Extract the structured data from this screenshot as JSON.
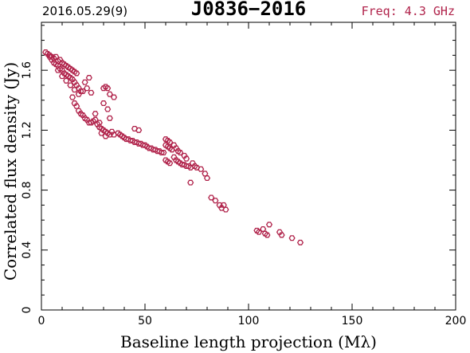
{
  "header": {
    "date": "2016.05.29(9)",
    "source": "J0836−2016",
    "freq": "Freq: 4.3 GHz"
  },
  "colors": {
    "points": "#b0224a",
    "freq_text": "#b0224a",
    "axes": "#000000"
  },
  "chart_data": {
    "type": "scatter",
    "xlabel": "Baseline length projection (Mλ)",
    "ylabel": "Correlated flux density (Jy)",
    "xlim": [
      0,
      200
    ],
    "ylim": [
      0,
      1.92
    ],
    "x_ticks": [
      0,
      50,
      100,
      150,
      200
    ],
    "y_ticks": [
      0,
      0.4,
      0.8,
      1.2,
      1.6
    ],
    "x_tick_labels": [
      "0",
      "50",
      "100",
      "150",
      "200"
    ],
    "y_tick_labels": [
      "0",
      "0.4",
      "0.8",
      "1.2",
      "1.6"
    ],
    "grid": false,
    "points": [
      [
        2,
        1.72
      ],
      [
        3,
        1.71
      ],
      [
        4,
        1.7
      ],
      [
        5,
        1.69
      ],
      [
        6,
        1.68
      ],
      [
        7,
        1.69
      ],
      [
        8,
        1.66
      ],
      [
        9,
        1.67
      ],
      [
        10,
        1.65
      ],
      [
        11,
        1.64
      ],
      [
        12,
        1.63
      ],
      [
        13,
        1.62
      ],
      [
        14,
        1.61
      ],
      [
        15,
        1.6
      ],
      [
        16,
        1.59
      ],
      [
        17,
        1.58
      ],
      [
        4,
        1.69
      ],
      [
        5,
        1.67
      ],
      [
        6,
        1.65
      ],
      [
        7,
        1.64
      ],
      [
        8,
        1.63
      ],
      [
        9,
        1.61
      ],
      [
        10,
        1.6
      ],
      [
        11,
        1.58
      ],
      [
        12,
        1.57
      ],
      [
        13,
        1.56
      ],
      [
        14,
        1.55
      ],
      [
        15,
        1.54
      ],
      [
        16,
        1.52
      ],
      [
        17,
        1.5
      ],
      [
        18,
        1.48
      ],
      [
        19,
        1.46
      ],
      [
        8,
        1.6
      ],
      [
        10,
        1.56
      ],
      [
        12,
        1.53
      ],
      [
        14,
        1.5
      ],
      [
        16,
        1.47
      ],
      [
        18,
        1.44
      ],
      [
        20,
        1.46
      ],
      [
        21,
        1.52
      ],
      [
        22,
        1.48
      ],
      [
        24,
        1.45
      ],
      [
        23,
        1.55
      ],
      [
        15,
        1.42
      ],
      [
        16,
        1.38
      ],
      [
        17,
        1.36
      ],
      [
        18,
        1.33
      ],
      [
        19,
        1.31
      ],
      [
        20,
        1.3
      ],
      [
        21,
        1.28
      ],
      [
        22,
        1.27
      ],
      [
        23,
        1.25
      ],
      [
        24,
        1.25
      ],
      [
        25,
        1.26
      ],
      [
        26,
        1.27
      ],
      [
        27,
        1.24
      ],
      [
        28,
        1.22
      ],
      [
        29,
        1.21
      ],
      [
        30,
        1.2
      ],
      [
        31,
        1.19
      ],
      [
        32,
        1.18
      ],
      [
        33,
        1.17
      ],
      [
        34,
        1.19
      ],
      [
        35,
        1.17
      ],
      [
        30,
        1.48
      ],
      [
        31,
        1.49
      ],
      [
        32,
        1.48
      ],
      [
        33,
        1.44
      ],
      [
        35,
        1.42
      ],
      [
        30,
        1.38
      ],
      [
        32,
        1.34
      ],
      [
        33,
        1.28
      ],
      [
        26,
        1.31
      ],
      [
        28,
        1.25
      ],
      [
        29,
        1.18
      ],
      [
        31,
        1.16
      ],
      [
        37,
        1.18
      ],
      [
        38,
        1.17
      ],
      [
        39,
        1.16
      ],
      [
        40,
        1.15
      ],
      [
        41,
        1.14
      ],
      [
        42,
        1.14
      ],
      [
        43,
        1.13
      ],
      [
        44,
        1.13
      ],
      [
        45,
        1.12
      ],
      [
        46,
        1.12
      ],
      [
        47,
        1.11
      ],
      [
        48,
        1.11
      ],
      [
        45,
        1.21
      ],
      [
        47,
        1.2
      ],
      [
        49,
        1.1
      ],
      [
        50,
        1.1
      ],
      [
        51,
        1.09
      ],
      [
        52,
        1.08
      ],
      [
        53,
        1.08
      ],
      [
        54,
        1.07
      ],
      [
        55,
        1.07
      ],
      [
        56,
        1.06
      ],
      [
        57,
        1.06
      ],
      [
        58,
        1.05
      ],
      [
        59,
        1.05
      ],
      [
        60,
        1.14
      ],
      [
        61,
        1.13
      ],
      [
        62,
        1.12
      ],
      [
        60,
        1.1
      ],
      [
        61,
        1.09
      ],
      [
        62,
        1.08
      ],
      [
        63,
        1.07
      ],
      [
        64,
        1.1
      ],
      [
        65,
        1.08
      ],
      [
        66,
        1.06
      ],
      [
        67,
        1.05
      ],
      [
        60,
        1.0
      ],
      [
        61,
        0.99
      ],
      [
        62,
        0.98
      ],
      [
        64,
        1.02
      ],
      [
        65,
        1.0
      ],
      [
        66,
        0.99
      ],
      [
        67,
        0.98
      ],
      [
        68,
        0.97
      ],
      [
        69,
        0.97
      ],
      [
        70,
        0.96
      ],
      [
        71,
        0.96
      ],
      [
        72,
        0.95
      ],
      [
        73,
        0.98
      ],
      [
        74,
        0.96
      ],
      [
        75,
        0.95
      ],
      [
        69,
        1.03
      ],
      [
        70,
        1.01
      ],
      [
        72,
        0.85
      ],
      [
        77,
        0.94
      ],
      [
        79,
        0.91
      ],
      [
        80,
        0.88
      ],
      [
        82,
        0.75
      ],
      [
        84,
        0.73
      ],
      [
        86,
        0.7
      ],
      [
        87,
        0.68
      ],
      [
        88,
        0.7
      ],
      [
        89,
        0.67
      ],
      [
        104,
        0.53
      ],
      [
        105,
        0.52
      ],
      [
        107,
        0.54
      ],
      [
        108,
        0.51
      ],
      [
        109,
        0.5
      ],
      [
        110,
        0.57
      ],
      [
        115,
        0.52
      ],
      [
        116,
        0.5
      ],
      [
        121,
        0.48
      ],
      [
        125,
        0.45
      ]
    ]
  }
}
